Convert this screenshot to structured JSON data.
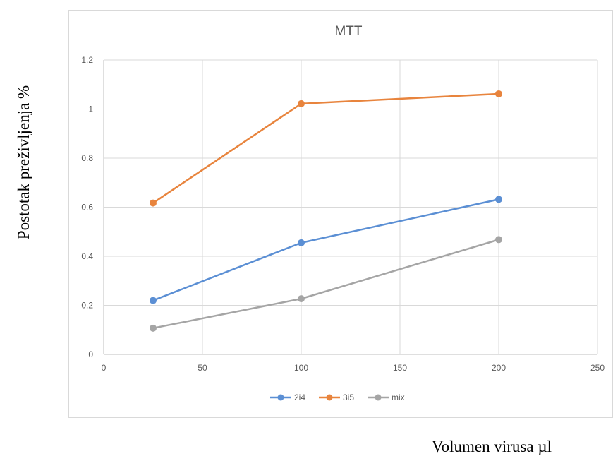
{
  "chart_data": {
    "type": "line",
    "title": "MTT",
    "xlabel": "Volumen virusa µl",
    "ylabel": "Postotak preživljenja  %",
    "xlim": [
      0,
      250
    ],
    "ylim": [
      0,
      1.2
    ],
    "x_ticks": [
      "0",
      "50",
      "100",
      "150",
      "200",
      "250"
    ],
    "y_ticks": [
      "0",
      "0.2",
      "0.4",
      "0.6",
      "0.8",
      "1",
      "1.2"
    ],
    "grid": true,
    "legend_position": "bottom",
    "series": [
      {
        "name": "2i4",
        "color": "#5b8fd4",
        "points": [
          [
            25,
            0.22
          ],
          [
            100,
            0.455
          ],
          [
            200,
            0.632
          ]
        ]
      },
      {
        "name": "3i5",
        "color": "#e8843d",
        "points": [
          [
            25,
            0.617
          ],
          [
            100,
            1.022
          ],
          [
            200,
            1.062
          ]
        ]
      },
      {
        "name": "mix",
        "color": "#a5a5a5",
        "points": [
          [
            25,
            0.107
          ],
          [
            100,
            0.227
          ],
          [
            200,
            0.468
          ]
        ]
      }
    ]
  }
}
